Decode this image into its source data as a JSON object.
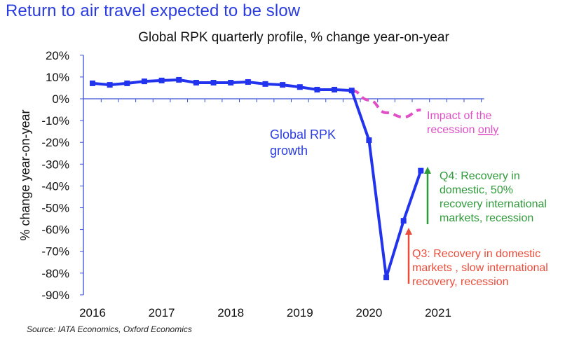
{
  "headline": "Return to air travel expected to be slow",
  "source": "Source: IATA Economics, Oxford Economics",
  "colors": {
    "headline": "#2a3be0",
    "series_main": "#2233ee",
    "series_recession": "#e14fc6",
    "axis": "#3a4fd6",
    "q4_annotation": "#2e9a3a",
    "q3_annotation": "#ec4c3a",
    "rpk_label": "#2a3be0"
  },
  "chart_data": {
    "type": "line",
    "title": "Global RPK quarterly profile, % change year-on-year",
    "xlabel": "",
    "ylabel": "% change year-on-year",
    "ylim": [
      -90,
      20
    ],
    "yticks": [
      20,
      10,
      0,
      -10,
      -20,
      -30,
      -40,
      -50,
      -60,
      -70,
      -80,
      -90
    ],
    "ytick_labels": [
      "20%",
      "10%",
      "0%",
      "-10%",
      "-20%",
      "-30%",
      "-40%",
      "-50%",
      "-60%",
      "-70%",
      "-80%",
      "-90%"
    ],
    "xtick_labels": [
      "2016",
      "2017",
      "2018",
      "2019",
      "2020",
      "2021"
    ],
    "x": [
      "2016Q1",
      "2016Q2",
      "2016Q3",
      "2016Q4",
      "2017Q1",
      "2017Q2",
      "2017Q3",
      "2017Q4",
      "2018Q1",
      "2018Q2",
      "2018Q3",
      "2018Q4",
      "2019Q1",
      "2019Q2",
      "2019Q3",
      "2019Q4",
      "2020Q1",
      "2020Q2",
      "2020Q3",
      "2020Q4"
    ],
    "grid": false,
    "legend": "none",
    "series": [
      {
        "name": "Global RPK growth",
        "style": "solid-markers",
        "values": [
          7.1,
          6.4,
          7.1,
          8.0,
          8.4,
          8.7,
          7.4,
          7.4,
          7.4,
          7.7,
          6.8,
          6.4,
          5.4,
          4.2,
          4.2,
          3.8,
          -19.0,
          -82.0,
          -56.0,
          -33.0
        ]
      },
      {
        "name": "Impact of the recession only",
        "style": "dashed",
        "start_index": 15,
        "values": [
          3.8,
          -0.6,
          -6.4,
          -8.4,
          -5.1
        ]
      }
    ],
    "annotations": [
      {
        "id": "rpk",
        "lines": [
          "Global RPK",
          "growth"
        ]
      },
      {
        "id": "recession",
        "lines": [
          "Impact of the",
          "recession "
        ],
        "underlined": "only"
      },
      {
        "id": "q4",
        "lines": [
          "Q4:  Recovery in",
          "domestic, 50%",
          "recovery international",
          "markets, recession"
        ]
      },
      {
        "id": "q3",
        "lines": [
          "Q3: Recovery in domestic",
          "markets , slow international",
          "recovery, recession"
        ]
      }
    ]
  }
}
